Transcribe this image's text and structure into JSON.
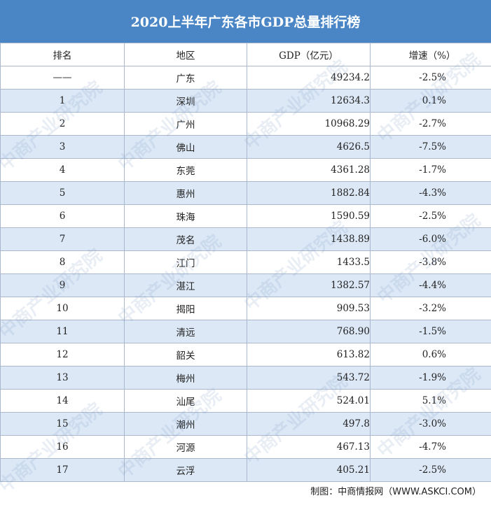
{
  "title": "2020上半年广东各市GDP总量排行榜",
  "headers": [
    "排名",
    "地区",
    "GDP（亿元）",
    "增速（%）"
  ],
  "footer": "制图：中商情报网（WWW.ASKCI.COM）",
  "watermark": "中商产业研究院",
  "chart_data": {
    "type": "table",
    "title": "2020上半年广东各市GDP总量排行榜",
    "columns": [
      "排名",
      "地区",
      "GDP（亿元）",
      "增速（%）"
    ],
    "rows": [
      [
        "——",
        "广东",
        "49234.2",
        "-2.5%"
      ],
      [
        "1",
        "深圳",
        "12634.3",
        "0.1%"
      ],
      [
        "2",
        "广州",
        "10968.29",
        "-2.7%"
      ],
      [
        "3",
        "佛山",
        "4626.5",
        "-7.5%"
      ],
      [
        "4",
        "东莞",
        "4361.28",
        "-1.7%"
      ],
      [
        "5",
        "惠州",
        "1882.84",
        "-4.3%"
      ],
      [
        "6",
        "珠海",
        "1590.59",
        "-2.5%"
      ],
      [
        "7",
        "茂名",
        "1438.89",
        "-6.0%"
      ],
      [
        "8",
        "江门",
        "1433.5",
        "-3.8%"
      ],
      [
        "9",
        "湛江",
        "1382.57",
        "-4.4%"
      ],
      [
        "10",
        "揭阳",
        "909.53",
        "-3.2%"
      ],
      [
        "11",
        "清远",
        "768.90",
        "-1.5%"
      ],
      [
        "12",
        "韶关",
        "613.82",
        "0.6%"
      ],
      [
        "13",
        "梅州",
        "543.72",
        "-1.9%"
      ],
      [
        "14",
        "汕尾",
        "524.01",
        "5.1%"
      ],
      [
        "15",
        "潮州",
        "497.8",
        "-3.0%"
      ],
      [
        "16",
        "河源",
        "467.13",
        "-4.7%"
      ],
      [
        "17",
        "云浮",
        "405.21",
        "-2.5%"
      ]
    ]
  }
}
